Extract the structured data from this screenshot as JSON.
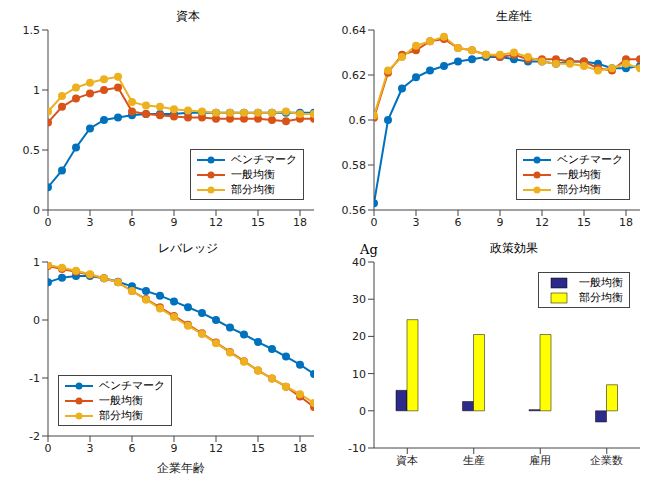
{
  "chart_data": [
    {
      "type": "line",
      "title": "資本",
      "x": [
        0,
        1,
        2,
        3,
        4,
        5,
        6,
        7,
        8,
        9,
        10,
        11,
        12,
        13,
        14,
        15,
        16,
        17,
        18,
        19
      ],
      "xlim": [
        0,
        19
      ],
      "xticks": [
        0,
        3,
        6,
        9,
        12,
        15,
        18
      ],
      "ylim": [
        0,
        1.5
      ],
      "yticks": [
        0,
        0.5,
        1,
        1.5
      ],
      "legend": "lower right",
      "marker": "circle",
      "series": [
        {
          "name": "ベンチマーク",
          "color": "#0072BD",
          "values": [
            0.19,
            0.33,
            0.52,
            0.68,
            0.75,
            0.77,
            0.79,
            0.8,
            0.8,
            0.8,
            0.81,
            0.81,
            0.81,
            0.81,
            0.81,
            0.81,
            0.81,
            0.81,
            0.81,
            0.81
          ]
        },
        {
          "name": "一般均衡",
          "color": "#D95319",
          "values": [
            0.73,
            0.86,
            0.93,
            0.97,
            1.0,
            1.02,
            0.82,
            0.8,
            0.79,
            0.78,
            0.77,
            0.77,
            0.76,
            0.76,
            0.76,
            0.76,
            0.75,
            0.74,
            0.76,
            0.76
          ]
        },
        {
          "name": "部分均衡",
          "color": "#EDB120",
          "values": [
            0.82,
            0.95,
            1.02,
            1.06,
            1.09,
            1.11,
            0.9,
            0.87,
            0.86,
            0.84,
            0.83,
            0.82,
            0.81,
            0.81,
            0.81,
            0.81,
            0.81,
            0.82,
            0.8,
            0.8
          ]
        }
      ]
    },
    {
      "type": "line",
      "title": "生産性",
      "x": [
        0,
        1,
        2,
        3,
        4,
        5,
        6,
        7,
        8,
        9,
        10,
        11,
        12,
        13,
        14,
        15,
        16,
        17,
        18,
        19
      ],
      "xlim": [
        0,
        19
      ],
      "xticks": [
        0,
        3,
        6,
        9,
        12,
        15,
        18
      ],
      "ylim": [
        0.56,
        0.64
      ],
      "yticks": [
        0.56,
        0.58,
        0.6,
        0.62,
        0.64
      ],
      "legend": "lower right",
      "marker": "circle",
      "series": [
        {
          "name": "ベンチマーク",
          "color": "#0072BD",
          "values": [
            0.563,
            0.6,
            0.614,
            0.619,
            0.622,
            0.624,
            0.626,
            0.627,
            0.628,
            0.628,
            0.627,
            0.626,
            0.626,
            0.625,
            0.626,
            0.626,
            0.625,
            0.623,
            0.623,
            0.624
          ]
        },
        {
          "name": "一般均衡",
          "color": "#D95319",
          "values": [
            0.601,
            0.621,
            0.629,
            0.631,
            0.635,
            0.636,
            0.632,
            0.631,
            0.629,
            0.628,
            0.629,
            0.627,
            0.627,
            0.627,
            0.626,
            0.626,
            0.623,
            0.622,
            0.627,
            0.627
          ]
        },
        {
          "name": "部分均衡",
          "color": "#EDB120",
          "values": [
            0.602,
            0.622,
            0.628,
            0.633,
            0.635,
            0.637,
            0.632,
            0.631,
            0.629,
            0.629,
            0.63,
            0.628,
            0.626,
            0.625,
            0.625,
            0.624,
            0.622,
            0.623,
            0.625,
            0.623
          ]
        }
      ]
    },
    {
      "type": "line",
      "title": "レバレッジ",
      "xlabel": "企業年齢",
      "x": [
        0,
        1,
        2,
        3,
        4,
        5,
        6,
        7,
        8,
        9,
        10,
        11,
        12,
        13,
        14,
        15,
        16,
        17,
        18,
        19
      ],
      "xlim": [
        0,
        19
      ],
      "xticks": [
        0,
        3,
        6,
        9,
        12,
        15,
        18
      ],
      "ylim": [
        -2,
        1
      ],
      "yticks": [
        -2,
        -1,
        0,
        1
      ],
      "legend": "lower left",
      "marker": "circle",
      "series": [
        {
          "name": "ベンチマーク",
          "color": "#0072BD",
          "values": [
            0.65,
            0.73,
            0.76,
            0.76,
            0.72,
            0.66,
            0.58,
            0.5,
            0.42,
            0.32,
            0.22,
            0.12,
            0.0,
            -0.13,
            -0.25,
            -0.38,
            -0.5,
            -0.63,
            -0.77,
            -0.93
          ]
        },
        {
          "name": "一般均衡",
          "color": "#D95319",
          "values": [
            0.93,
            0.88,
            0.83,
            0.78,
            0.72,
            0.65,
            0.5,
            0.36,
            0.22,
            0.07,
            -0.08,
            -0.23,
            -0.39,
            -0.55,
            -0.71,
            -0.87,
            -1.01,
            -1.15,
            -1.32,
            -1.5
          ]
        },
        {
          "name": "部分均衡",
          "color": "#EDB120",
          "values": [
            0.95,
            0.9,
            0.85,
            0.79,
            0.72,
            0.65,
            0.5,
            0.35,
            0.2,
            0.05,
            -0.1,
            -0.24,
            -0.4,
            -0.56,
            -0.72,
            -0.87,
            -1.01,
            -1.15,
            -1.28,
            -1.43
          ]
        }
      ]
    },
    {
      "type": "bar",
      "title": "政策効果",
      "annotation": "Ag",
      "categories": [
        "資本",
        "生産",
        "雇用",
        "企業数"
      ],
      "ylim": [
        -10,
        40
      ],
      "yticks": [
        -10,
        0,
        10,
        20,
        30,
        40
      ],
      "legend": "upper right",
      "series": [
        {
          "name": "一般均衡",
          "color": "#2E2A8A",
          "values": [
            5.5,
            2.5,
            0.3,
            -3
          ]
        },
        {
          "name": "部分均衡",
          "color": "#FFFF00",
          "values": [
            24.5,
            20.5,
            20.5,
            7
          ]
        }
      ]
    }
  ]
}
